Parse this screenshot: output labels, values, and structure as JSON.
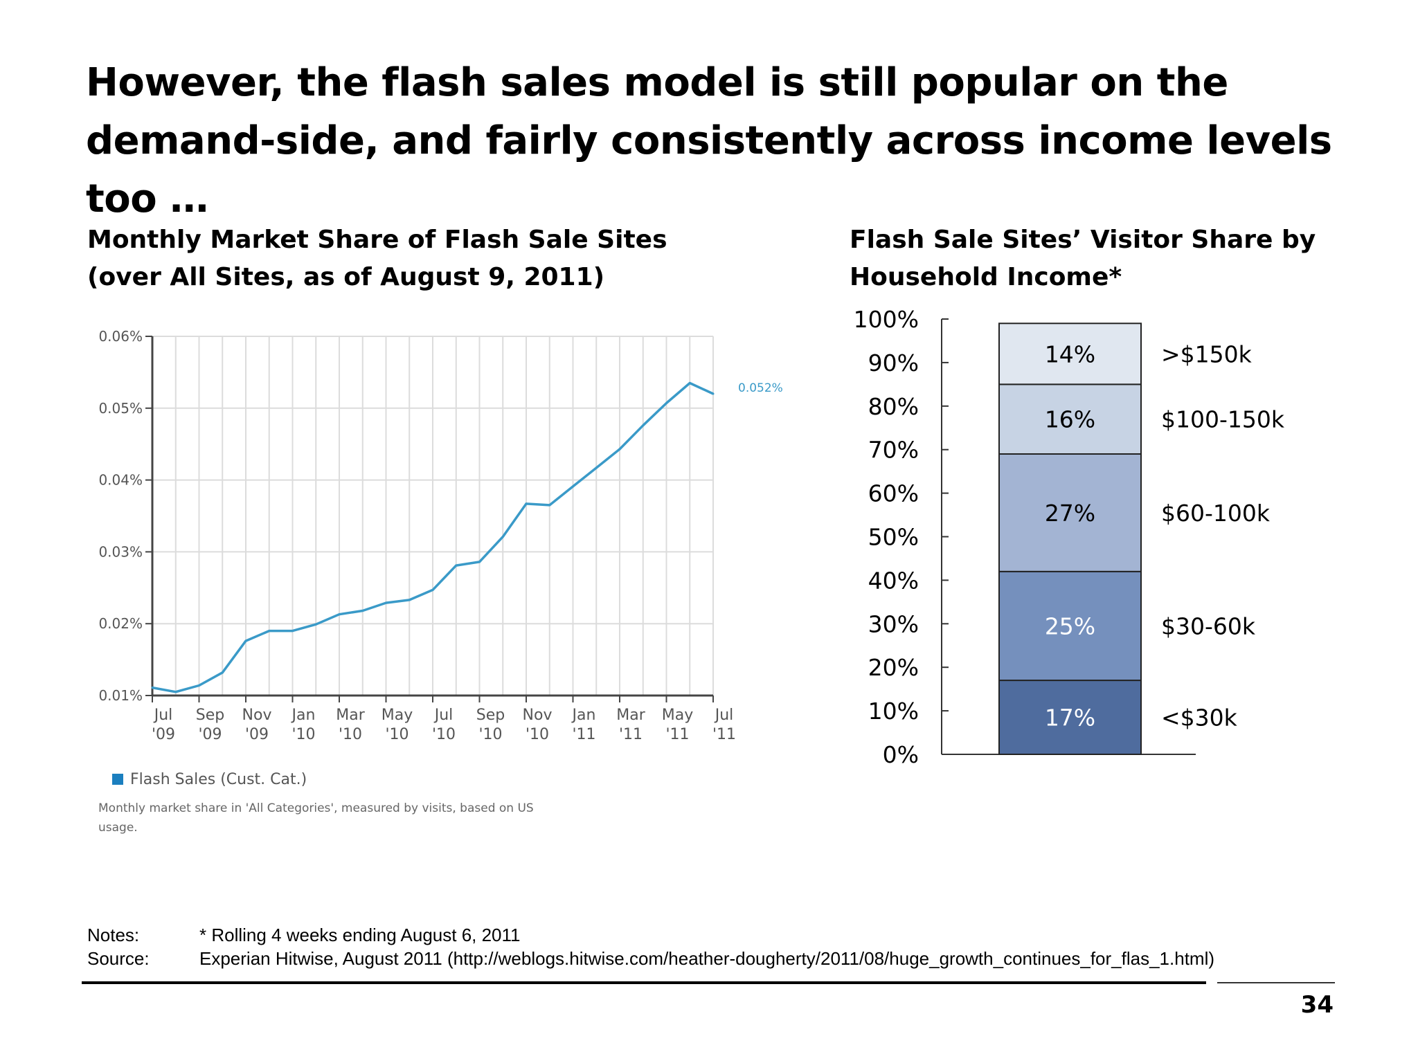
{
  "slide": {
    "title": "However, the flash sales model is still popular on the demand-side, and fairly consistently across income levels too …",
    "page_number": "34"
  },
  "left_chart": {
    "heading_line1": "Monthly Market Share of Flash Sale Sites",
    "heading_line2": "(over All Sites, as of August 9, 2011)",
    "end_label": "0.052%",
    "legend": "Flash Sales (Cust. Cat.)",
    "caption_line1": "Monthly market share in 'All Categories', measured by visits, based on US",
    "caption_line2": "usage.",
    "series_color": "#3a9ac8",
    "legend_color": "#1b7fbf"
  },
  "right_chart": {
    "heading_line1": "Flash Sale Sites’ Visitor Share by",
    "heading_line2": "Household Income*"
  },
  "footer": {
    "notes_label": "Notes:",
    "notes_text": "* Rolling 4 weeks ending August 6, 2011",
    "source_label": "Source:",
    "source_text": "Experian Hitwise, August 2011 (http://weblogs.hitwise.com/heather-dougherty/2011/08/huge_growth_continues_for_flas_1.html)"
  },
  "chart_data": [
    {
      "type": "line",
      "y_ticks": [
        "0.01%",
        "0.02%",
        "0.03%",
        "0.04%",
        "0.05%",
        "0.06%"
      ],
      "ylim": [
        0.01,
        0.06
      ],
      "x_ticks": [
        {
          "month": "Jul",
          "year": "'09"
        },
        {
          "month": "Sep",
          "year": "'09"
        },
        {
          "month": "Nov",
          "year": "'09"
        },
        {
          "month": "Jan",
          "year": "'10"
        },
        {
          "month": "Mar",
          "year": "'10"
        },
        {
          "month": "May",
          "year": "'10"
        },
        {
          "month": "Jul",
          "year": "'10"
        },
        {
          "month": "Sep",
          "year": "'10"
        },
        {
          "month": "Nov",
          "year": "'10"
        },
        {
          "month": "Jan",
          "year": "'11"
        },
        {
          "month": "Mar",
          "year": "'11"
        },
        {
          "month": "May",
          "year": "'11"
        },
        {
          "month": "Jul",
          "year": "'11"
        }
      ],
      "grid": true,
      "series": [
        {
          "name": "Flash Sales (Cust. Cat.)",
          "x": [
            "Jul '09",
            "Aug '09",
            "Sep '09",
            "Oct '09",
            "Nov '09",
            "Dec '09",
            "Jan '10",
            "Feb '10",
            "Mar '10",
            "Apr '10",
            "May '10",
            "Jun '10",
            "Jul '10",
            "Aug '10",
            "Sep '10",
            "Oct '10",
            "Nov '10",
            "Dec '10",
            "Jan '11",
            "Feb '11",
            "Mar '11",
            "Apr '11",
            "May '11",
            "Jun '11",
            "Jul '11"
          ],
          "values": [
            0.0111,
            0.0105,
            0.0114,
            0.0132,
            0.0176,
            0.019,
            0.019,
            0.0199,
            0.0213,
            0.0218,
            0.0229,
            0.0233,
            0.0247,
            0.0281,
            0.0286,
            0.0321,
            0.0367,
            0.0365,
            0.0391,
            0.0417,
            0.0443,
            0.0476,
            0.0507,
            0.0535,
            0.052
          ]
        }
      ]
    },
    {
      "type": "bar",
      "stacked": true,
      "y_ticks": [
        "0%",
        "10%",
        "20%",
        "30%",
        "40%",
        "50%",
        "60%",
        "70%",
        "80%",
        "90%",
        "100%"
      ],
      "ylim": [
        0,
        100
      ],
      "segments": [
        {
          "label": "<$30k",
          "value": 17,
          "value_label": "17%",
          "color": "#4f6c9e",
          "text_color": "#ffffff"
        },
        {
          "label": "$30-60k",
          "value": 25,
          "value_label": "25%",
          "color": "#7590bd",
          "text_color": "#ffffff"
        },
        {
          "label": "$60-100k",
          "value": 27,
          "value_label": "27%",
          "color": "#a3b4d3",
          "text_color": "#000000"
        },
        {
          "label": "$100-150k",
          "value": 16,
          "value_label": "16%",
          "color": "#c7d3e4",
          "text_color": "#000000"
        },
        {
          "label": ">$150k",
          "value": 14,
          "value_label": "14%",
          "color": "#e0e7f0",
          "text_color": "#000000"
        }
      ]
    }
  ]
}
